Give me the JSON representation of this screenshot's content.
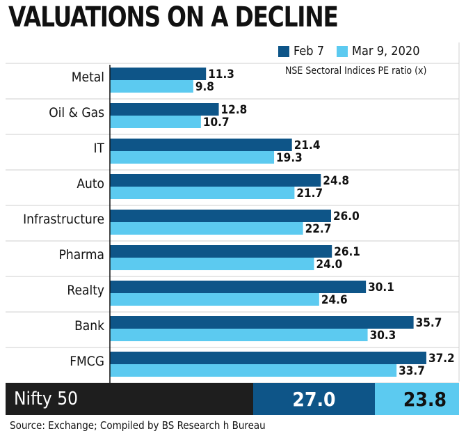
{
  "title": "VALUATIONS ON A DECLINE",
  "subtitle": "NSE Sectoral Indices PE ratio (x)",
  "colors": {
    "feb": "#0e5588",
    "mar": "#5ccaf0",
    "grid": "#cfcfcf"
  },
  "chart_data": {
    "type": "bar",
    "orientation": "horizontal",
    "categories": [
      "Metal",
      "Oil & Gas",
      "IT",
      "Auto",
      "Infrastructure",
      "Pharma",
      "Realty",
      "Bank",
      "FMCG"
    ],
    "series": [
      {
        "name": "Feb 7",
        "values": [
          11.3,
          12.8,
          21.4,
          24.8,
          26.0,
          26.1,
          30.1,
          35.7,
          37.2
        ]
      },
      {
        "name": "Mar 9, 2020",
        "values": [
          9.8,
          10.7,
          19.3,
          21.7,
          22.7,
          24.0,
          24.6,
          30.3,
          33.7
        ]
      }
    ],
    "xlim": [
      0,
      40
    ],
    "grid": true,
    "legend": "top-right"
  },
  "summary_row": {
    "label": "Nifty 50",
    "values": [
      "27.0",
      "23.8"
    ]
  },
  "source": "Source: Exchange; Compiled by BS Research h Bureau"
}
